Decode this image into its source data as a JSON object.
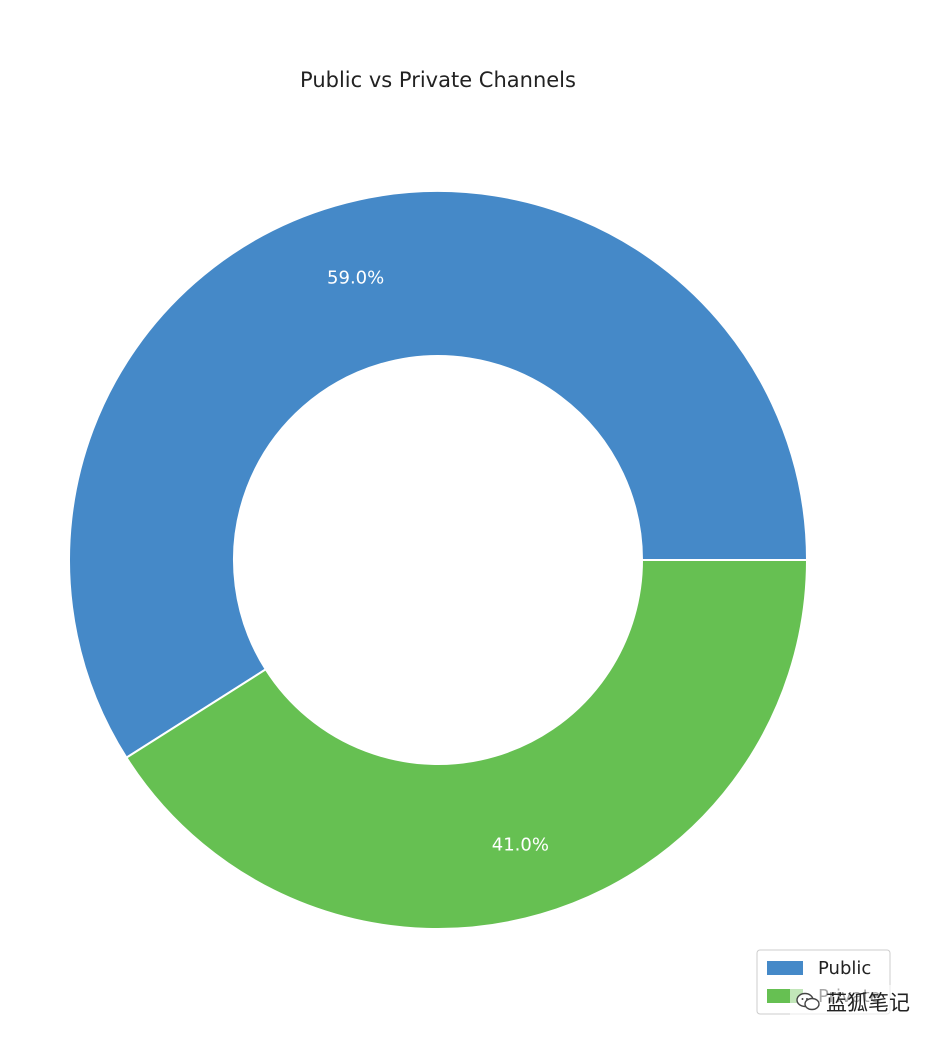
{
  "chart_data": {
    "type": "pie",
    "donut": true,
    "title": "Public vs Private Channels",
    "labels": [
      "Public",
      "Private"
    ],
    "values": [
      59.0,
      41.0
    ],
    "value_labels": [
      "59.0%",
      "41.0%"
    ],
    "colors": [
      "#4589c8",
      "#66c052"
    ],
    "start_angle_deg": 0,
    "direction": "counterclockwise",
    "legend_position": "bottom-right"
  },
  "watermark": {
    "text": "蓝狐笔记",
    "icon": "wechat-icon"
  }
}
